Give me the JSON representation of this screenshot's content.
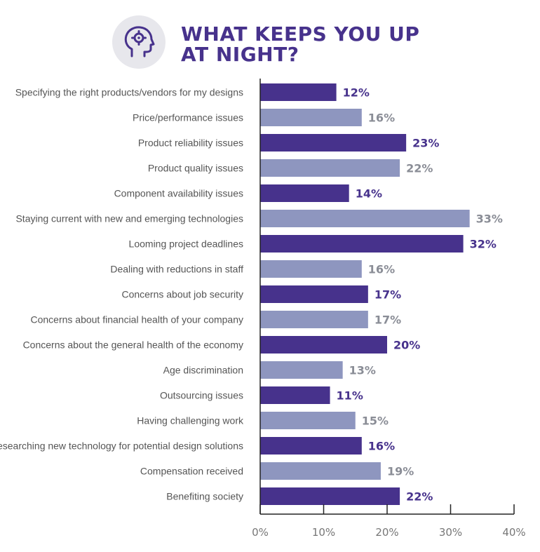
{
  "header": {
    "icon": "head-gear-icon",
    "title_line1": "WHAT KEEPS YOU UP",
    "title_line2": "AT NIGHT?"
  },
  "colors": {
    "dark_bar": "#47328c",
    "light_bar": "#8e96bf",
    "dark_label": "#47328c",
    "light_label": "#8a8d96",
    "axis": "#222222",
    "category_text": "#555555",
    "tick_text": "#777777",
    "icon_bg": "#e7e7ec",
    "icon_stroke": "#47328c"
  },
  "chart_data": {
    "type": "bar",
    "orientation": "horizontal",
    "title": "WHAT KEEPS YOU UP AT NIGHT?",
    "categories": [
      "Specifying the right products/vendors for my designs",
      "Price/performance issues",
      "Product reliability issues",
      "Product quality issues",
      "Component availability issues",
      "Staying current with new and emerging technologies",
      "Looming project deadlines",
      "Dealing with reductions in staff",
      "Concerns about job security",
      "Concerns about financial health of your company",
      "Concerns about the general health of the economy",
      "Age discrimination",
      "Outsourcing issues",
      "Having challenging work",
      "Researching new technology for potential design solutions",
      "Compensation received",
      "Benefiting society"
    ],
    "values": [
      12,
      16,
      23,
      22,
      14,
      33,
      32,
      16,
      17,
      17,
      20,
      13,
      11,
      15,
      16,
      19,
      22
    ],
    "value_labels": [
      "12%",
      "16%",
      "23%",
      "22%",
      "14%",
      "33%",
      "32%",
      "16%",
      "17%",
      "17%",
      "20%",
      "13%",
      "11%",
      "15%",
      "16%",
      "19%",
      "22%"
    ],
    "xlim": [
      0,
      40
    ],
    "xticks": [
      0,
      10,
      20,
      30,
      40
    ],
    "xtick_labels": [
      "0%",
      "10%",
      "20%",
      "30%",
      "40%"
    ],
    "grid": false,
    "xlabel": "",
    "ylabel": ""
  }
}
